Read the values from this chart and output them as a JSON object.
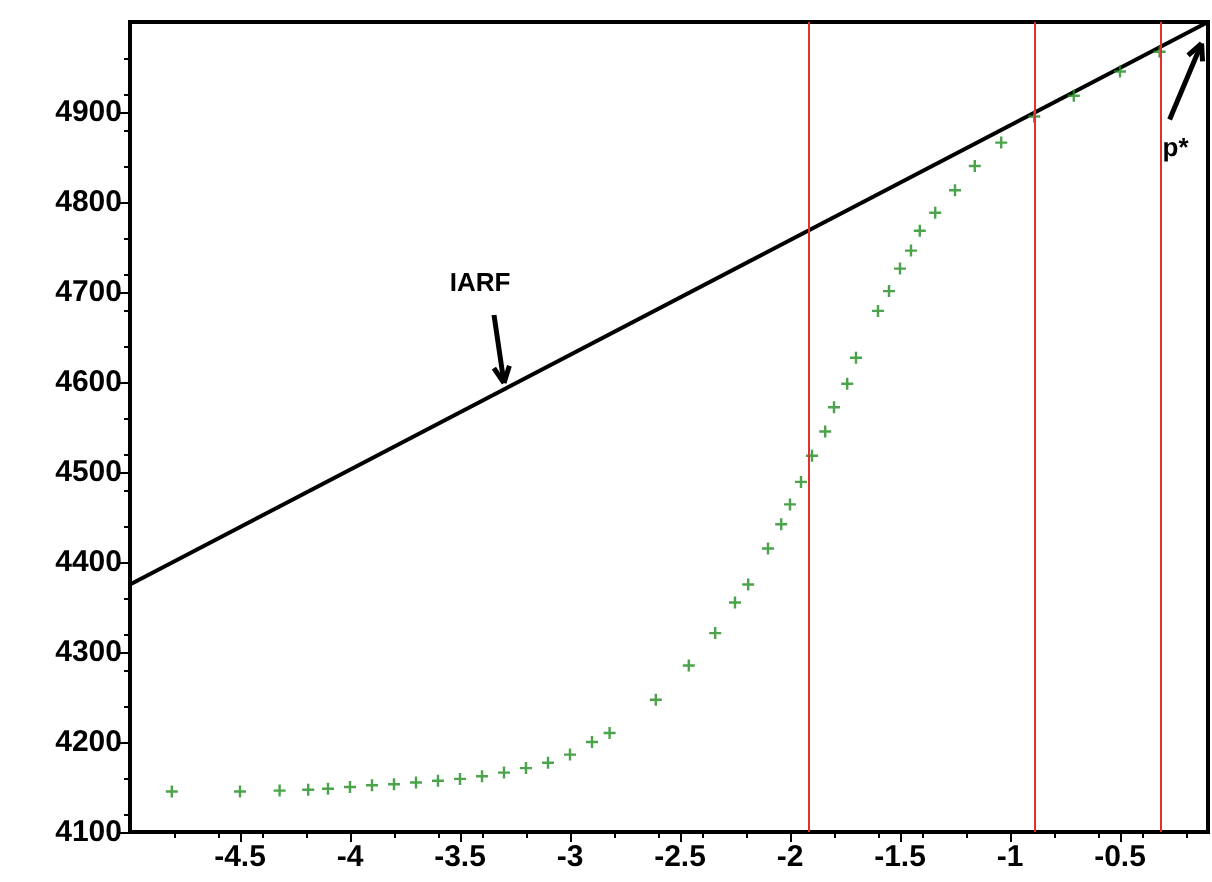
{
  "chart_data": {
    "type": "scatter",
    "xlim": [
      -5,
      -0.1
    ],
    "xticks": [
      -4.5,
      -4,
      -3.5,
      -3,
      -2.5,
      -2,
      -1.5,
      -1,
      -0.5
    ],
    "ylim": [
      4100,
      5000
    ],
    "yticks": [
      4100,
      4200,
      4300,
      4400,
      4500,
      4600,
      4700,
      4800,
      4900
    ],
    "grid": false,
    "series": [
      {
        "type": "line",
        "color": "#000000",
        "marker": "none",
        "line_style": "solid",
        "x": [
          -5,
          -0.1
        ],
        "values": [
          4375,
          5000
        ]
      },
      {
        "color": "#1e8c1e",
        "marker": "cross",
        "x": [
          -4.81,
          -4.5,
          -4.32,
          -4.19,
          -4.1,
          -4.0,
          -3.9,
          -3.8,
          -3.7,
          -3.6,
          -3.5,
          -3.4,
          -3.3,
          -3.2,
          -3.1,
          -3.0,
          -2.9,
          -2.82,
          -2.61,
          -2.46,
          -2.34,
          -2.25,
          -2.19,
          -2.1,
          -2.04,
          -2.0,
          -1.95,
          -1.9,
          -1.84,
          -1.8,
          -1.74,
          -1.7,
          -1.6,
          -1.55,
          -1.5,
          -1.45,
          -1.41,
          -1.34,
          -1.25,
          -1.16,
          -1.04,
          -0.89,
          -0.71,
          -0.5,
          -0.32
        ],
        "values": [
          4145,
          4145,
          4146,
          4147,
          4148,
          4150,
          4152,
          4153,
          4155,
          4157,
          4159,
          4162,
          4166,
          4171,
          4177,
          4186,
          4200,
          4210,
          4247,
          4285,
          4321,
          4355,
          4375,
          4415,
          4442,
          4464,
          4489,
          4518,
          4545,
          4572,
          4598,
          4627,
          4679,
          4701,
          4726,
          4746,
          4768,
          4788,
          4813,
          4840,
          4866,
          4895,
          4918,
          4945,
          4967
        ]
      }
    ],
    "ref_lines": [
      {
        "axis": "x",
        "value": -1.92,
        "color": "#e03030"
      },
      {
        "axis": "x",
        "value": -0.89,
        "color": "#e03030"
      },
      {
        "axis": "x",
        "value": -0.32,
        "color": "#e03030"
      }
    ],
    "annotations": [
      {
        "text": "IARF",
        "x": -3.3,
        "y": 4590
      },
      {
        "text": "p*",
        "x": -0.12,
        "y": 4985
      }
    ]
  }
}
